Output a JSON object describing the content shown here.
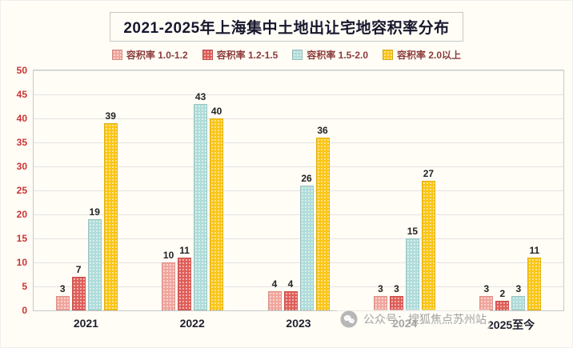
{
  "page": {
    "watermark": {
      "icon": "wechat-icon",
      "text": "公众号：搜狐焦点苏州站"
    }
  },
  "chart_data": {
    "type": "bar",
    "title": "2021-2025年上海集中土地出让宅地容积率分布",
    "categories": [
      "2021",
      "2022",
      "2023",
      "2024",
      "2025至今"
    ],
    "series": [
      {
        "name": "容积率 1.0-1.2",
        "color": "#F2A49B",
        "values": [
          3,
          10,
          4,
          3,
          3
        ]
      },
      {
        "name": "容积率 1.2-1.5",
        "color": "#E05C57",
        "values": [
          7,
          11,
          4,
          3,
          2
        ]
      },
      {
        "name": "容积率 1.5-2.0",
        "color": "#AEDCD9",
        "values": [
          19,
          43,
          26,
          15,
          3
        ]
      },
      {
        "name": "容积率 2.0以上",
        "color": "#FBC514",
        "values": [
          39,
          40,
          36,
          27,
          11
        ]
      }
    ],
    "ylim": [
      0,
      50
    ],
    "yticks": [
      0,
      5,
      10,
      15,
      20,
      25,
      30,
      35,
      40,
      45,
      50
    ],
    "grid": true,
    "legend_position": "top",
    "accent_colors": {
      "y_tick_label": "#cc3333",
      "x_tick_label": "#1f1f2e",
      "title": "#17172e"
    }
  }
}
